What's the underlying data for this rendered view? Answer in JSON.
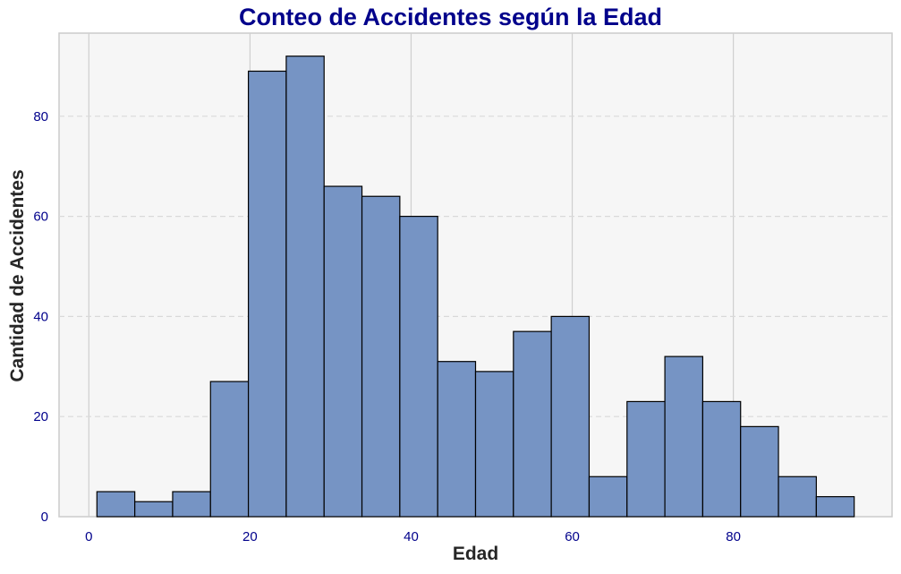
{
  "chart_data": {
    "type": "bar",
    "title": "Conteo de Accidentes según la Edad",
    "xlabel": "Edad",
    "ylabel": "Cantidad de Accidentes",
    "bin_edges": [
      1,
      5.7,
      10.4,
      15.1,
      19.8,
      24.5,
      29.2,
      33.9,
      38.6,
      43.3,
      48.0,
      52.7,
      57.4,
      62.1,
      66.8,
      71.5,
      76.2,
      80.9,
      85.6,
      90.3,
      95.0
    ],
    "values": [
      5,
      3,
      5,
      27,
      89,
      92,
      66,
      64,
      60,
      31,
      29,
      37,
      40,
      8,
      23,
      32,
      23,
      18,
      8,
      4
    ],
    "xlim": [
      -3.7,
      99.7
    ],
    "ylim": [
      0,
      96.6
    ],
    "xticks": [
      0,
      20,
      40,
      60,
      80
    ],
    "yticks": [
      0,
      20,
      40,
      60,
      80
    ],
    "grid": true,
    "colors": {
      "bar_fill": "#7694c4",
      "bar_edge": "#000000",
      "plot_background": "#f6f6f6",
      "title": "#00008b",
      "tick_labels": "#00008b"
    }
  }
}
